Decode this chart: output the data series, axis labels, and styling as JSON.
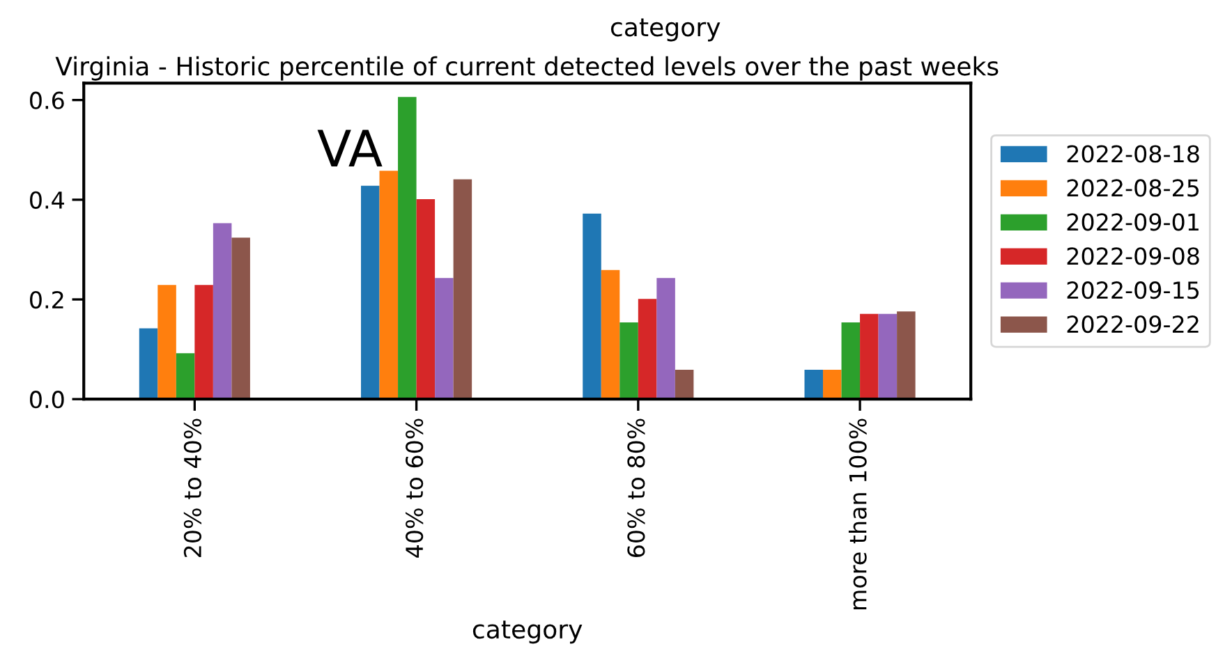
{
  "chart_data": {
    "type": "bar",
    "title": "Virginia - Historic percentile of current detected levels over the past weeks",
    "xlabel": "category",
    "annotations": [
      "category",
      "VA"
    ],
    "categories": [
      "20% to 40%",
      "40% to 60%",
      "60% to 80%",
      "more than 100%"
    ],
    "series": [
      {
        "name": "2022-08-18",
        "color": "#1f77b4",
        "values": [
          0.142,
          0.428,
          0.372,
          0.059
        ]
      },
      {
        "name": "2022-08-25",
        "color": "#ff7f0e",
        "values": [
          0.229,
          0.458,
          0.259,
          0.059
        ]
      },
      {
        "name": "2022-09-01",
        "color": "#2ca02c",
        "values": [
          0.092,
          0.606,
          0.154,
          0.154
        ]
      },
      {
        "name": "2022-09-08",
        "color": "#d62728",
        "values": [
          0.229,
          0.401,
          0.201,
          0.171
        ]
      },
      {
        "name": "2022-09-15",
        "color": "#9467bd",
        "values": [
          0.353,
          0.243,
          0.243,
          0.171
        ]
      },
      {
        "name": "2022-09-22",
        "color": "#8c564b",
        "values": [
          0.324,
          0.441,
          0.059,
          0.176
        ]
      }
    ],
    "ylim": [
      0,
      0.634
    ],
    "yticks": [
      {
        "value": 0,
        "label": "0.0"
      },
      {
        "value": 0.2,
        "label": "0.2"
      },
      {
        "value": 0.4,
        "label": "0.4"
      },
      {
        "value": 0.6,
        "label": "0.6"
      }
    ],
    "grid": false,
    "legend": "right"
  }
}
